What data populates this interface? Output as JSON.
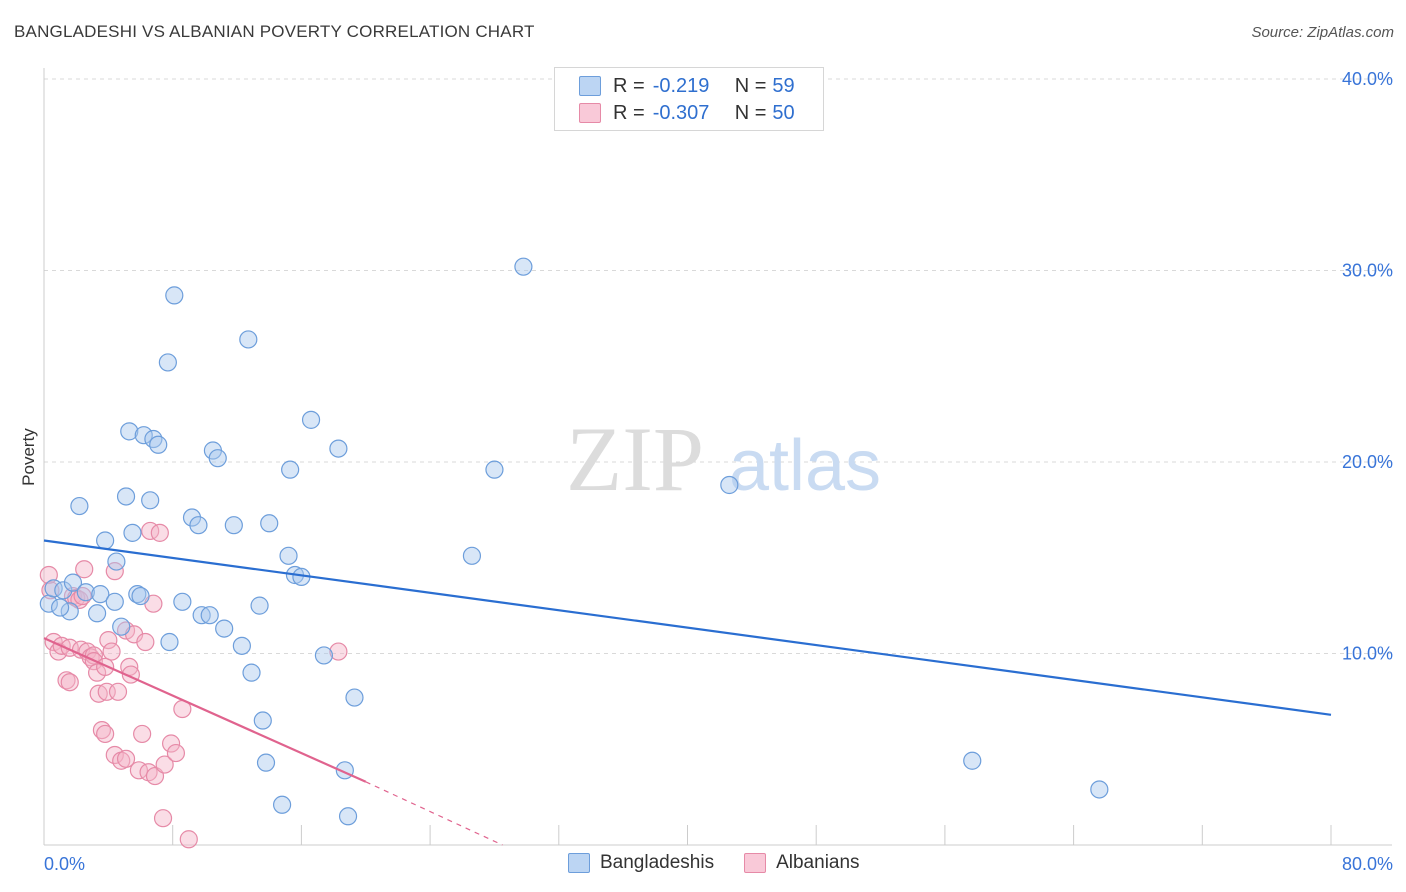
{
  "title": "BANGLADESHI VS ALBANIAN POVERTY CORRELATION CHART",
  "source": "Source: ZipAtlas.com",
  "watermark": {
    "zip": "ZIP",
    "atlas": "atlas"
  },
  "legend_top": {
    "row1": {
      "r_label": "R = ",
      "r_value": "-0.219",
      "n_label": "N = ",
      "n_value": "59"
    },
    "row2": {
      "r_label": "R = ",
      "r_value": "-0.307",
      "n_label": "N = ",
      "n_value": "50"
    }
  },
  "colors": {
    "blue_fill": "#a9c8ee",
    "blue_stroke": "#6d9edb",
    "blue_line": "#2a6ed1",
    "pink_fill": "#f5b3c8",
    "pink_stroke": "#e68aa7",
    "pink_line": "#e0638e",
    "tick_label": "#3874d8",
    "grid": "#d9d9d9"
  },
  "chart_data": {
    "type": "scatter",
    "title": "BANGLADESHI VS ALBANIAN POVERTY CORRELATION CHART",
    "xlabel": "",
    "ylabel": "Poverty",
    "xlim": [
      0,
      80
    ],
    "ylim": [
      0,
      40
    ],
    "x_tick_labels": [
      "0.0%",
      "80.0%"
    ],
    "y_ticks": [
      10,
      20,
      30,
      40
    ],
    "y_tick_labels": [
      "10.0%",
      "20.0%",
      "30.0%",
      "40.0%"
    ],
    "legend_position": "bottom-center",
    "series": [
      {
        "name": "Bangladeshis",
        "color": "#6d9edb",
        "R": -0.219,
        "N": 59,
        "trend": {
          "x0": 0,
          "y0": 15.9,
          "x1": 80,
          "y1": 6.8
        },
        "points": [
          [
            0.3,
            12.6
          ],
          [
            0.6,
            13.4
          ],
          [
            1.2,
            13.3
          ],
          [
            1.6,
            12.2
          ],
          [
            1.8,
            13.7
          ],
          [
            2.2,
            17.7
          ],
          [
            2.6,
            13.2
          ],
          [
            3.3,
            12.1
          ],
          [
            3.5,
            13.1
          ],
          [
            3.8,
            15.9
          ],
          [
            4.5,
            14.8
          ],
          [
            4.4,
            12.7
          ],
          [
            4.8,
            11.4
          ],
          [
            5.1,
            18.2
          ],
          [
            5.5,
            16.3
          ],
          [
            5.3,
            21.6
          ],
          [
            5.8,
            13.1
          ],
          [
            6.2,
            21.4
          ],
          [
            6.6,
            18.0
          ],
          [
            6.8,
            21.2
          ],
          [
            7.1,
            20.9
          ],
          [
            7.7,
            25.2
          ],
          [
            7.8,
            10.6
          ],
          [
            8.1,
            28.7
          ],
          [
            8.6,
            12.7
          ],
          [
            9.2,
            17.1
          ],
          [
            9.6,
            16.7
          ],
          [
            9.8,
            12.0
          ],
          [
            10.3,
            12.0
          ],
          [
            10.5,
            20.6
          ],
          [
            10.8,
            20.2
          ],
          [
            11.2,
            11.3
          ],
          [
            11.8,
            16.7
          ],
          [
            12.3,
            10.4
          ],
          [
            12.7,
            26.4
          ],
          [
            12.9,
            9.0
          ],
          [
            13.4,
            12.5
          ],
          [
            13.6,
            6.5
          ],
          [
            13.8,
            4.3
          ],
          [
            14.0,
            16.8
          ],
          [
            14.8,
            2.1
          ],
          [
            15.2,
            15.1
          ],
          [
            15.3,
            19.6
          ],
          [
            15.6,
            14.1
          ],
          [
            16.0,
            14.0
          ],
          [
            16.6,
            22.2
          ],
          [
            17.4,
            9.9
          ],
          [
            18.3,
            20.7
          ],
          [
            18.7,
            3.9
          ],
          [
            18.9,
            1.5
          ],
          [
            19.3,
            7.7
          ],
          [
            26.6,
            15.1
          ],
          [
            28.0,
            19.6
          ],
          [
            29.8,
            30.2
          ],
          [
            42.6,
            18.8
          ],
          [
            57.7,
            4.4
          ],
          [
            65.6,
            2.9
          ],
          [
            1.0,
            12.4
          ],
          [
            6.0,
            13.0
          ]
        ]
      },
      {
        "name": "Albanians",
        "color": "#e68aa7",
        "R": -0.307,
        "N": 50,
        "trend": {
          "x0": 0,
          "y0": 10.8,
          "x1": 20,
          "y1": 3.3,
          "dash_to_x": 28.5,
          "dash_to_y": 0.0
        },
        "points": [
          [
            0.3,
            14.1
          ],
          [
            0.4,
            13.3
          ],
          [
            0.6,
            10.6
          ],
          [
            0.9,
            10.1
          ],
          [
            1.1,
            10.4
          ],
          [
            1.4,
            8.6
          ],
          [
            1.6,
            10.3
          ],
          [
            1.6,
            8.5
          ],
          [
            1.8,
            13.0
          ],
          [
            2.0,
            12.9
          ],
          [
            2.2,
            12.8
          ],
          [
            2.3,
            10.2
          ],
          [
            2.4,
            13.0
          ],
          [
            2.5,
            14.4
          ],
          [
            2.7,
            10.1
          ],
          [
            2.9,
            9.8
          ],
          [
            3.1,
            9.9
          ],
          [
            3.1,
            9.6
          ],
          [
            3.3,
            9.0
          ],
          [
            3.4,
            7.9
          ],
          [
            3.6,
            6.0
          ],
          [
            3.8,
            9.3
          ],
          [
            3.8,
            5.8
          ],
          [
            3.9,
            8.0
          ],
          [
            4.0,
            10.7
          ],
          [
            4.2,
            10.1
          ],
          [
            4.4,
            14.3
          ],
          [
            4.4,
            4.7
          ],
          [
            4.6,
            8.0
          ],
          [
            4.8,
            4.4
          ],
          [
            5.1,
            11.2
          ],
          [
            5.1,
            4.5
          ],
          [
            5.3,
            9.3
          ],
          [
            5.4,
            8.9
          ],
          [
            5.6,
            11.0
          ],
          [
            5.9,
            3.9
          ],
          [
            6.1,
            5.8
          ],
          [
            6.3,
            10.6
          ],
          [
            6.5,
            3.8
          ],
          [
            6.6,
            16.4
          ],
          [
            6.8,
            12.6
          ],
          [
            6.9,
            3.6
          ],
          [
            7.2,
            16.3
          ],
          [
            7.4,
            1.4
          ],
          [
            7.5,
            4.2
          ],
          [
            7.9,
            5.3
          ],
          [
            8.2,
            4.8
          ],
          [
            8.6,
            7.1
          ],
          [
            9.0,
            0.3
          ],
          [
            18.3,
            10.1
          ]
        ]
      }
    ]
  }
}
